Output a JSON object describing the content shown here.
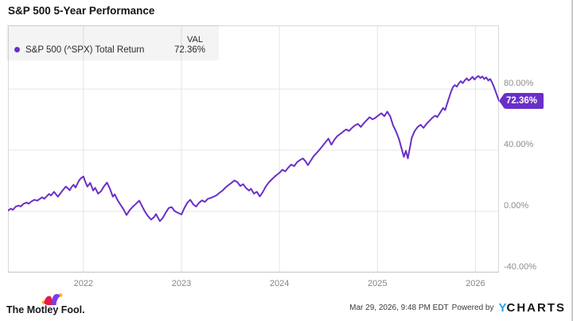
{
  "title": "S&P 500 5-Year Performance",
  "legend": {
    "series_label": "S&P 500 (^SPX) Total Return",
    "val_header": "VAL",
    "val_value": "72.36%"
  },
  "value_tag": {
    "label": "72.36%"
  },
  "footer": {
    "brand": "The Motley Fool.",
    "timestamp": "Mar 29, 2026, 9:48 PM EDT",
    "powered_by": "Powered by",
    "ycharts_y": "Y",
    "ycharts_rest": "CHARTS"
  },
  "colors": {
    "line": "#6a2fc9",
    "tag_bg": "#6a2fc9",
    "grid": "#e5e5e5",
    "plot_border": "#d9d9d9",
    "axis_bottom": "#c4c4c4",
    "axis_text": "#8c8c8c",
    "ycharts_blue": "#2b9ff0",
    "cap_red": "#e51b4c",
    "cap_purple": "#7c3aed",
    "cap_yellow": "#ffb81c"
  },
  "chart_data": {
    "type": "line",
    "title": "S&P 500 5-Year Performance",
    "series_name": "S&P 500 (^SPX) Total Return",
    "final_value_pct": 72.36,
    "x_range": [
      2021.23,
      2026.24
    ],
    "y_range_pct": [
      -40,
      121.6
    ],
    "grid": true,
    "legend_position": "top-left",
    "x_ticks": [
      {
        "value": 2022,
        "label": "2022"
      },
      {
        "value": 2023,
        "label": "2023"
      },
      {
        "value": 2024,
        "label": "2024"
      },
      {
        "value": 2025,
        "label": "2025"
      },
      {
        "value": 2026,
        "label": "2026"
      }
    ],
    "y_ticks": [
      {
        "value": 80,
        "label": "80.00%"
      },
      {
        "value": 40,
        "label": "40.00%"
      },
      {
        "value": 0,
        "label": "0.00%"
      },
      {
        "value": -40,
        "label": "-40.00%"
      }
    ],
    "points": [
      [
        2021.23,
        0.5
      ],
      [
        2021.26,
        1.8
      ],
      [
        2021.28,
        1.0
      ],
      [
        2021.31,
        3.2
      ],
      [
        2021.34,
        3.8
      ],
      [
        2021.36,
        3.2
      ],
      [
        2021.39,
        5.0
      ],
      [
        2021.42,
        5.8
      ],
      [
        2021.44,
        5.0
      ],
      [
        2021.47,
        6.5
      ],
      [
        2021.5,
        7.6
      ],
      [
        2021.53,
        7.0
      ],
      [
        2021.56,
        8.4
      ],
      [
        2021.58,
        9.2
      ],
      [
        2021.6,
        8.2
      ],
      [
        2021.63,
        10.2
      ],
      [
        2021.65,
        11.4
      ],
      [
        2021.67,
        10.4
      ],
      [
        2021.7,
        12.8
      ],
      [
        2021.72,
        11.2
      ],
      [
        2021.74,
        9.6
      ],
      [
        2021.77,
        12.2
      ],
      [
        2021.8,
        14.6
      ],
      [
        2021.82,
        16.2
      ],
      [
        2021.84,
        15.2
      ],
      [
        2021.86,
        13.8
      ],
      [
        2021.88,
        16.0
      ],
      [
        2021.9,
        17.4
      ],
      [
        2021.92,
        15.6
      ],
      [
        2021.95,
        19.6
      ],
      [
        2021.97,
        21.4
      ],
      [
        2022.0,
        22.8
      ],
      [
        2022.02,
        19.2
      ],
      [
        2022.04,
        16.2
      ],
      [
        2022.07,
        18.6
      ],
      [
        2022.1,
        13.6
      ],
      [
        2022.12,
        15.4
      ],
      [
        2022.15,
        11.6
      ],
      [
        2022.18,
        13.2
      ],
      [
        2022.21,
        16.4
      ],
      [
        2022.24,
        18.8
      ],
      [
        2022.27,
        14.8
      ],
      [
        2022.3,
        9.6
      ],
      [
        2022.32,
        11.2
      ],
      [
        2022.35,
        7.2
      ],
      [
        2022.38,
        4.2
      ],
      [
        2022.41,
        1.2
      ],
      [
        2022.44,
        -2.4
      ],
      [
        2022.47,
        0.6
      ],
      [
        2022.5,
        2.8
      ],
      [
        2022.53,
        4.6
      ],
      [
        2022.57,
        7.0
      ],
      [
        2022.6,
        3.2
      ],
      [
        2022.63,
        -0.4
      ],
      [
        2022.66,
        -3.2
      ],
      [
        2022.69,
        -5.4
      ],
      [
        2022.72,
        -3.8
      ],
      [
        2022.74,
        -1.8
      ],
      [
        2022.78,
        -6.4
      ],
      [
        2022.81,
        -4.2
      ],
      [
        2022.84,
        -0.8
      ],
      [
        2022.87,
        2.2
      ],
      [
        2022.9,
        2.8
      ],
      [
        2022.93,
        0.2
      ],
      [
        2022.96,
        -0.8
      ],
      [
        2023.0,
        -2.0
      ],
      [
        2023.03,
        2.2
      ],
      [
        2023.06,
        5.6
      ],
      [
        2023.09,
        7.6
      ],
      [
        2023.12,
        4.6
      ],
      [
        2023.15,
        3.2
      ],
      [
        2023.18,
        5.6
      ],
      [
        2023.21,
        7.2
      ],
      [
        2023.24,
        6.2
      ],
      [
        2023.27,
        8.2
      ],
      [
        2023.3,
        8.8
      ],
      [
        2023.33,
        9.6
      ],
      [
        2023.36,
        10.6
      ],
      [
        2023.39,
        12.2
      ],
      [
        2023.42,
        13.6
      ],
      [
        2023.45,
        15.6
      ],
      [
        2023.48,
        17.2
      ],
      [
        2023.51,
        18.6
      ],
      [
        2023.54,
        20.2
      ],
      [
        2023.57,
        19.2
      ],
      [
        2023.6,
        16.6
      ],
      [
        2023.63,
        17.8
      ],
      [
        2023.66,
        15.2
      ],
      [
        2023.69,
        13.6
      ],
      [
        2023.71,
        14.8
      ],
      [
        2023.74,
        11.6
      ],
      [
        2023.77,
        12.8
      ],
      [
        2023.8,
        9.8
      ],
      [
        2023.83,
        12.6
      ],
      [
        2023.86,
        16.2
      ],
      [
        2023.89,
        18.8
      ],
      [
        2023.92,
        20.8
      ],
      [
        2023.96,
        23.2
      ],
      [
        2024.0,
        25.2
      ],
      [
        2024.03,
        27.2
      ],
      [
        2024.06,
        26.2
      ],
      [
        2024.09,
        28.6
      ],
      [
        2024.12,
        30.6
      ],
      [
        2024.15,
        29.6
      ],
      [
        2024.18,
        32.2
      ],
      [
        2024.21,
        33.6
      ],
      [
        2024.24,
        34.6
      ],
      [
        2024.27,
        32.4
      ],
      [
        2024.29,
        30.2
      ],
      [
        2024.32,
        33.2
      ],
      [
        2024.35,
        36.2
      ],
      [
        2024.38,
        38.2
      ],
      [
        2024.41,
        40.4
      ],
      [
        2024.44,
        42.8
      ],
      [
        2024.47,
        45.2
      ],
      [
        2024.5,
        47.6
      ],
      [
        2024.53,
        43.6
      ],
      [
        2024.56,
        46.8
      ],
      [
        2024.59,
        49.2
      ],
      [
        2024.62,
        50.6
      ],
      [
        2024.65,
        52.2
      ],
      [
        2024.68,
        53.6
      ],
      [
        2024.71,
        52.6
      ],
      [
        2024.74,
        54.6
      ],
      [
        2024.77,
        56.2
      ],
      [
        2024.8,
        57.2
      ],
      [
        2024.83,
        55.2
      ],
      [
        2024.86,
        57.6
      ],
      [
        2024.89,
        59.6
      ],
      [
        2024.92,
        61.6
      ],
      [
        2024.95,
        60.2
      ],
      [
        2024.98,
        61.2
      ],
      [
        2025.01,
        62.8
      ],
      [
        2025.04,
        64.2
      ],
      [
        2025.07,
        62.2
      ],
      [
        2025.1,
        65.2
      ],
      [
        2025.13,
        62.2
      ],
      [
        2025.16,
        56.2
      ],
      [
        2025.19,
        52.2
      ],
      [
        2025.22,
        47.2
      ],
      [
        2025.25,
        40.2
      ],
      [
        2025.27,
        35.6
      ],
      [
        2025.29,
        39.6
      ],
      [
        2025.31,
        34.6
      ],
      [
        2025.33,
        41.2
      ],
      [
        2025.35,
        48.2
      ],
      [
        2025.38,
        52.6
      ],
      [
        2025.41,
        55.2
      ],
      [
        2025.44,
        56.6
      ],
      [
        2025.47,
        54.6
      ],
      [
        2025.5,
        57.2
      ],
      [
        2025.53,
        59.2
      ],
      [
        2025.56,
        61.2
      ],
      [
        2025.59,
        62.6
      ],
      [
        2025.61,
        61.6
      ],
      [
        2025.64,
        64.6
      ],
      [
        2025.67,
        67.6
      ],
      [
        2025.69,
        66.2
      ],
      [
        2025.71,
        70.2
      ],
      [
        2025.73,
        74.2
      ],
      [
        2025.75,
        78.2
      ],
      [
        2025.77,
        81.2
      ],
      [
        2025.79,
        82.6
      ],
      [
        2025.81,
        81.6
      ],
      [
        2025.83,
        83.6
      ],
      [
        2025.85,
        85.2
      ],
      [
        2025.87,
        83.8
      ],
      [
        2025.89,
        85.6
      ],
      [
        2025.91,
        87.0
      ],
      [
        2025.93,
        85.6
      ],
      [
        2025.95,
        86.6
      ],
      [
        2025.97,
        88.0
      ],
      [
        2025.99,
        86.2
      ],
      [
        2026.01,
        87.6
      ],
      [
        2026.03,
        88.6
      ],
      [
        2026.05,
        87.2
      ],
      [
        2026.07,
        88.2
      ],
      [
        2026.09,
        86.6
      ],
      [
        2026.11,
        87.6
      ],
      [
        2026.13,
        85.6
      ],
      [
        2026.15,
        86.6
      ],
      [
        2026.17,
        84.2
      ],
      [
        2026.19,
        81.2
      ],
      [
        2026.21,
        77.6
      ],
      [
        2026.23,
        74.0
      ],
      [
        2026.24,
        72.36
      ]
    ]
  }
}
